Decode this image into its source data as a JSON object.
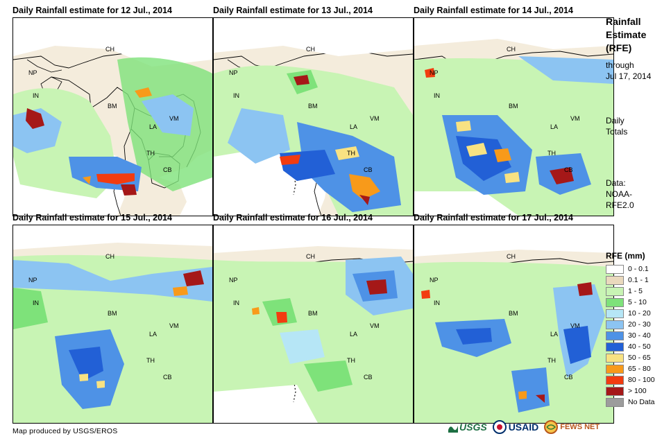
{
  "panels": [
    {
      "title": "Daily Rainfall estimate for 12 Jul., 2014"
    },
    {
      "title": "Daily Rainfall estimate for 13 Jul., 2014"
    },
    {
      "title": "Daily Rainfall estimate for 14 Jul., 2014"
    },
    {
      "title": "Daily Rainfall estimate for 15 Jul., 2014"
    },
    {
      "title": "Daily Rainfall estimate for 16 Jul., 2014"
    },
    {
      "title": "Daily Rainfall estimate for 17 Jul., 2014"
    }
  ],
  "country_labels": {
    "ch": "CH",
    "np": "NP",
    "in": "IN",
    "bm": "BM",
    "la": "LA",
    "vm": "VM",
    "th": "TH",
    "cb": "CB"
  },
  "sidebar": {
    "title_lines": [
      "Rainfall",
      "Estimate",
      "(RFE)"
    ],
    "through_lines": [
      "through",
      "Jul 17, 2014"
    ],
    "totals_lines": [
      "Daily",
      "Totals"
    ],
    "data_lines": [
      "Data:",
      "NOAA-",
      "RFE2.0"
    ]
  },
  "legend": {
    "title": "RFE (mm)",
    "items": [
      {
        "label": "0 - 0.1",
        "color": "#ffffff"
      },
      {
        "label": "0.1 - 1",
        "color": "#ead9bd"
      },
      {
        "label": "1 - 5",
        "color": "#c8f4b4"
      },
      {
        "label": "5 - 10",
        "color": "#7ee27a"
      },
      {
        "label": "10 - 20",
        "color": "#b6e6f6"
      },
      {
        "label": "20 - 30",
        "color": "#8cc4f2"
      },
      {
        "label": "30 - 40",
        "color": "#4e92e6"
      },
      {
        "label": "40 - 50",
        "color": "#2260d6"
      },
      {
        "label": "50 - 65",
        "color": "#f8e282"
      },
      {
        "label": "65 - 80",
        "color": "#f89a1a"
      },
      {
        "label": "80 - 100",
        "color": "#f23c10"
      },
      {
        "label": "> 100",
        "color": "#a51818"
      },
      {
        "label": "No Data",
        "color": "#9c9c9c"
      }
    ]
  },
  "credit": "Map produced by USGS/EROS",
  "logos": {
    "usgs": "USGS",
    "usaid": "USAID",
    "fewsnet": "FEWS NET"
  }
}
